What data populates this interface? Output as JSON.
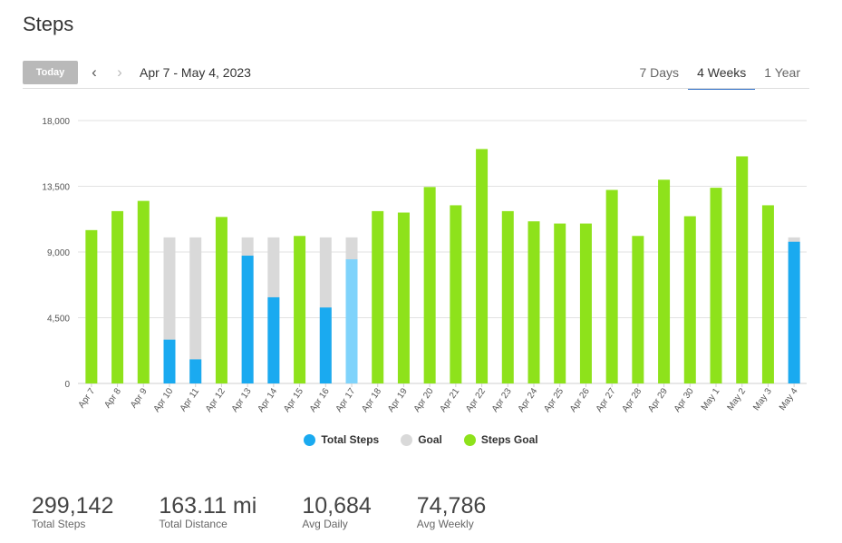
{
  "page_title": "Steps",
  "toolbar": {
    "today_label": "Today",
    "date_range": "Apr 7 - May 4, 2023"
  },
  "tabs": [
    {
      "label": "7 Days",
      "active": false
    },
    {
      "label": "4 Weeks",
      "active": true
    },
    {
      "label": "1 Year",
      "active": false
    }
  ],
  "legend": [
    {
      "label": "Total Steps",
      "color": "#1aaaf0"
    },
    {
      "label": "Goal",
      "color": "#d9d9d9"
    },
    {
      "label": "Steps Goal",
      "color": "#8ee21b"
    }
  ],
  "chart_data": {
    "type": "bar",
    "ylim": [
      0,
      18000
    ],
    "yticks": [
      "0",
      "4,500",
      "9,000",
      "13,500",
      "18,000"
    ],
    "grid": true,
    "legend_position": "bottom",
    "goal": 10000,
    "categories": [
      "Apr 7",
      "Apr 8",
      "Apr 9",
      "Apr 10",
      "Apr 11",
      "Apr 12",
      "Apr 13",
      "Apr 14",
      "Apr 15",
      "Apr 16",
      "Apr 17",
      "Apr 18",
      "Apr 19",
      "Apr 20",
      "Apr 21",
      "Apr 22",
      "Apr 23",
      "Apr 24",
      "Apr 25",
      "Apr 26",
      "Apr 27",
      "Apr 28",
      "Apr 29",
      "Apr 30",
      "May 1",
      "May 2",
      "May 3",
      "May 4"
    ],
    "values": [
      10500,
      11800,
      12500,
      3000,
      1650,
      11400,
      8750,
      5900,
      10100,
      5200,
      8500,
      11800,
      11700,
      13450,
      12200,
      16050,
      11800,
      11100,
      10950,
      10950,
      13250,
      10100,
      13950,
      11450,
      13400,
      15550,
      12200,
      9700
    ],
    "colors": {
      "steps": "#1aaaf0",
      "steps_today": "#7fd3fb",
      "goal": "#d9d9d9",
      "goal_met": "#8ee21b"
    },
    "highlight_index": 10
  },
  "stats": [
    {
      "value": "299,142",
      "label": "Total Steps"
    },
    {
      "value": "163.11 mi",
      "label": "Total Distance"
    },
    {
      "value": "10,684",
      "label": "Avg Daily"
    },
    {
      "value": "74,786",
      "label": "Avg Weekly"
    }
  ]
}
